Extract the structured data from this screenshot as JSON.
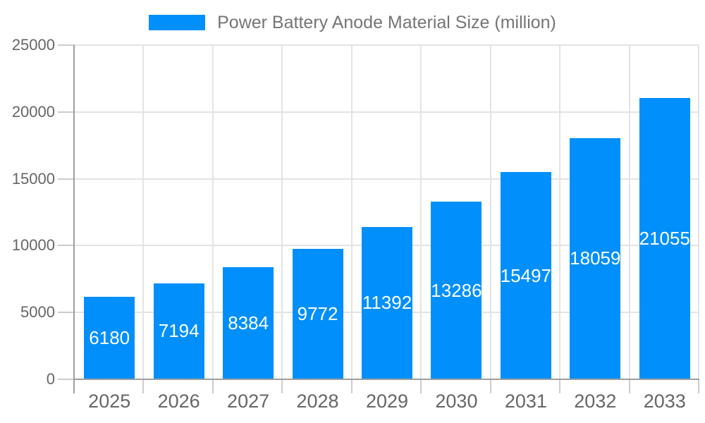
{
  "chart_data": {
    "type": "bar",
    "title": "Power Battery Anode Material Size (million)",
    "legend_position": "top",
    "categories": [
      "2025",
      "2026",
      "2027",
      "2028",
      "2029",
      "2030",
      "2031",
      "2032",
      "2033"
    ],
    "series": [
      {
        "name": "Power Battery Anode Material Size (million)",
        "values": [
          6180,
          7194,
          8384,
          9772,
          11392,
          13286,
          15497,
          18059,
          21055
        ]
      }
    ],
    "data_labels": [
      "6180",
      "7194",
      "8384",
      "9772",
      "11392",
      "13286",
      "15497",
      "18059",
      "21055"
    ],
    "xlabel": "",
    "ylabel": "",
    "ylim": [
      0,
      25000
    ],
    "yticks": [
      0,
      5000,
      10000,
      15000,
      20000,
      25000
    ],
    "ytick_labels": [
      "0",
      "5000",
      "10000",
      "15000",
      "20000",
      "25000"
    ],
    "grid": true,
    "colors": {
      "bar": "#008FFB",
      "grid": "#e3e3e3",
      "axis": "#9e9e9e",
      "tick": "#cccccc",
      "axis_label": "#666666",
      "legend_text": "#757575",
      "data_label": "#ffffff",
      "background": "#ffffff"
    }
  }
}
